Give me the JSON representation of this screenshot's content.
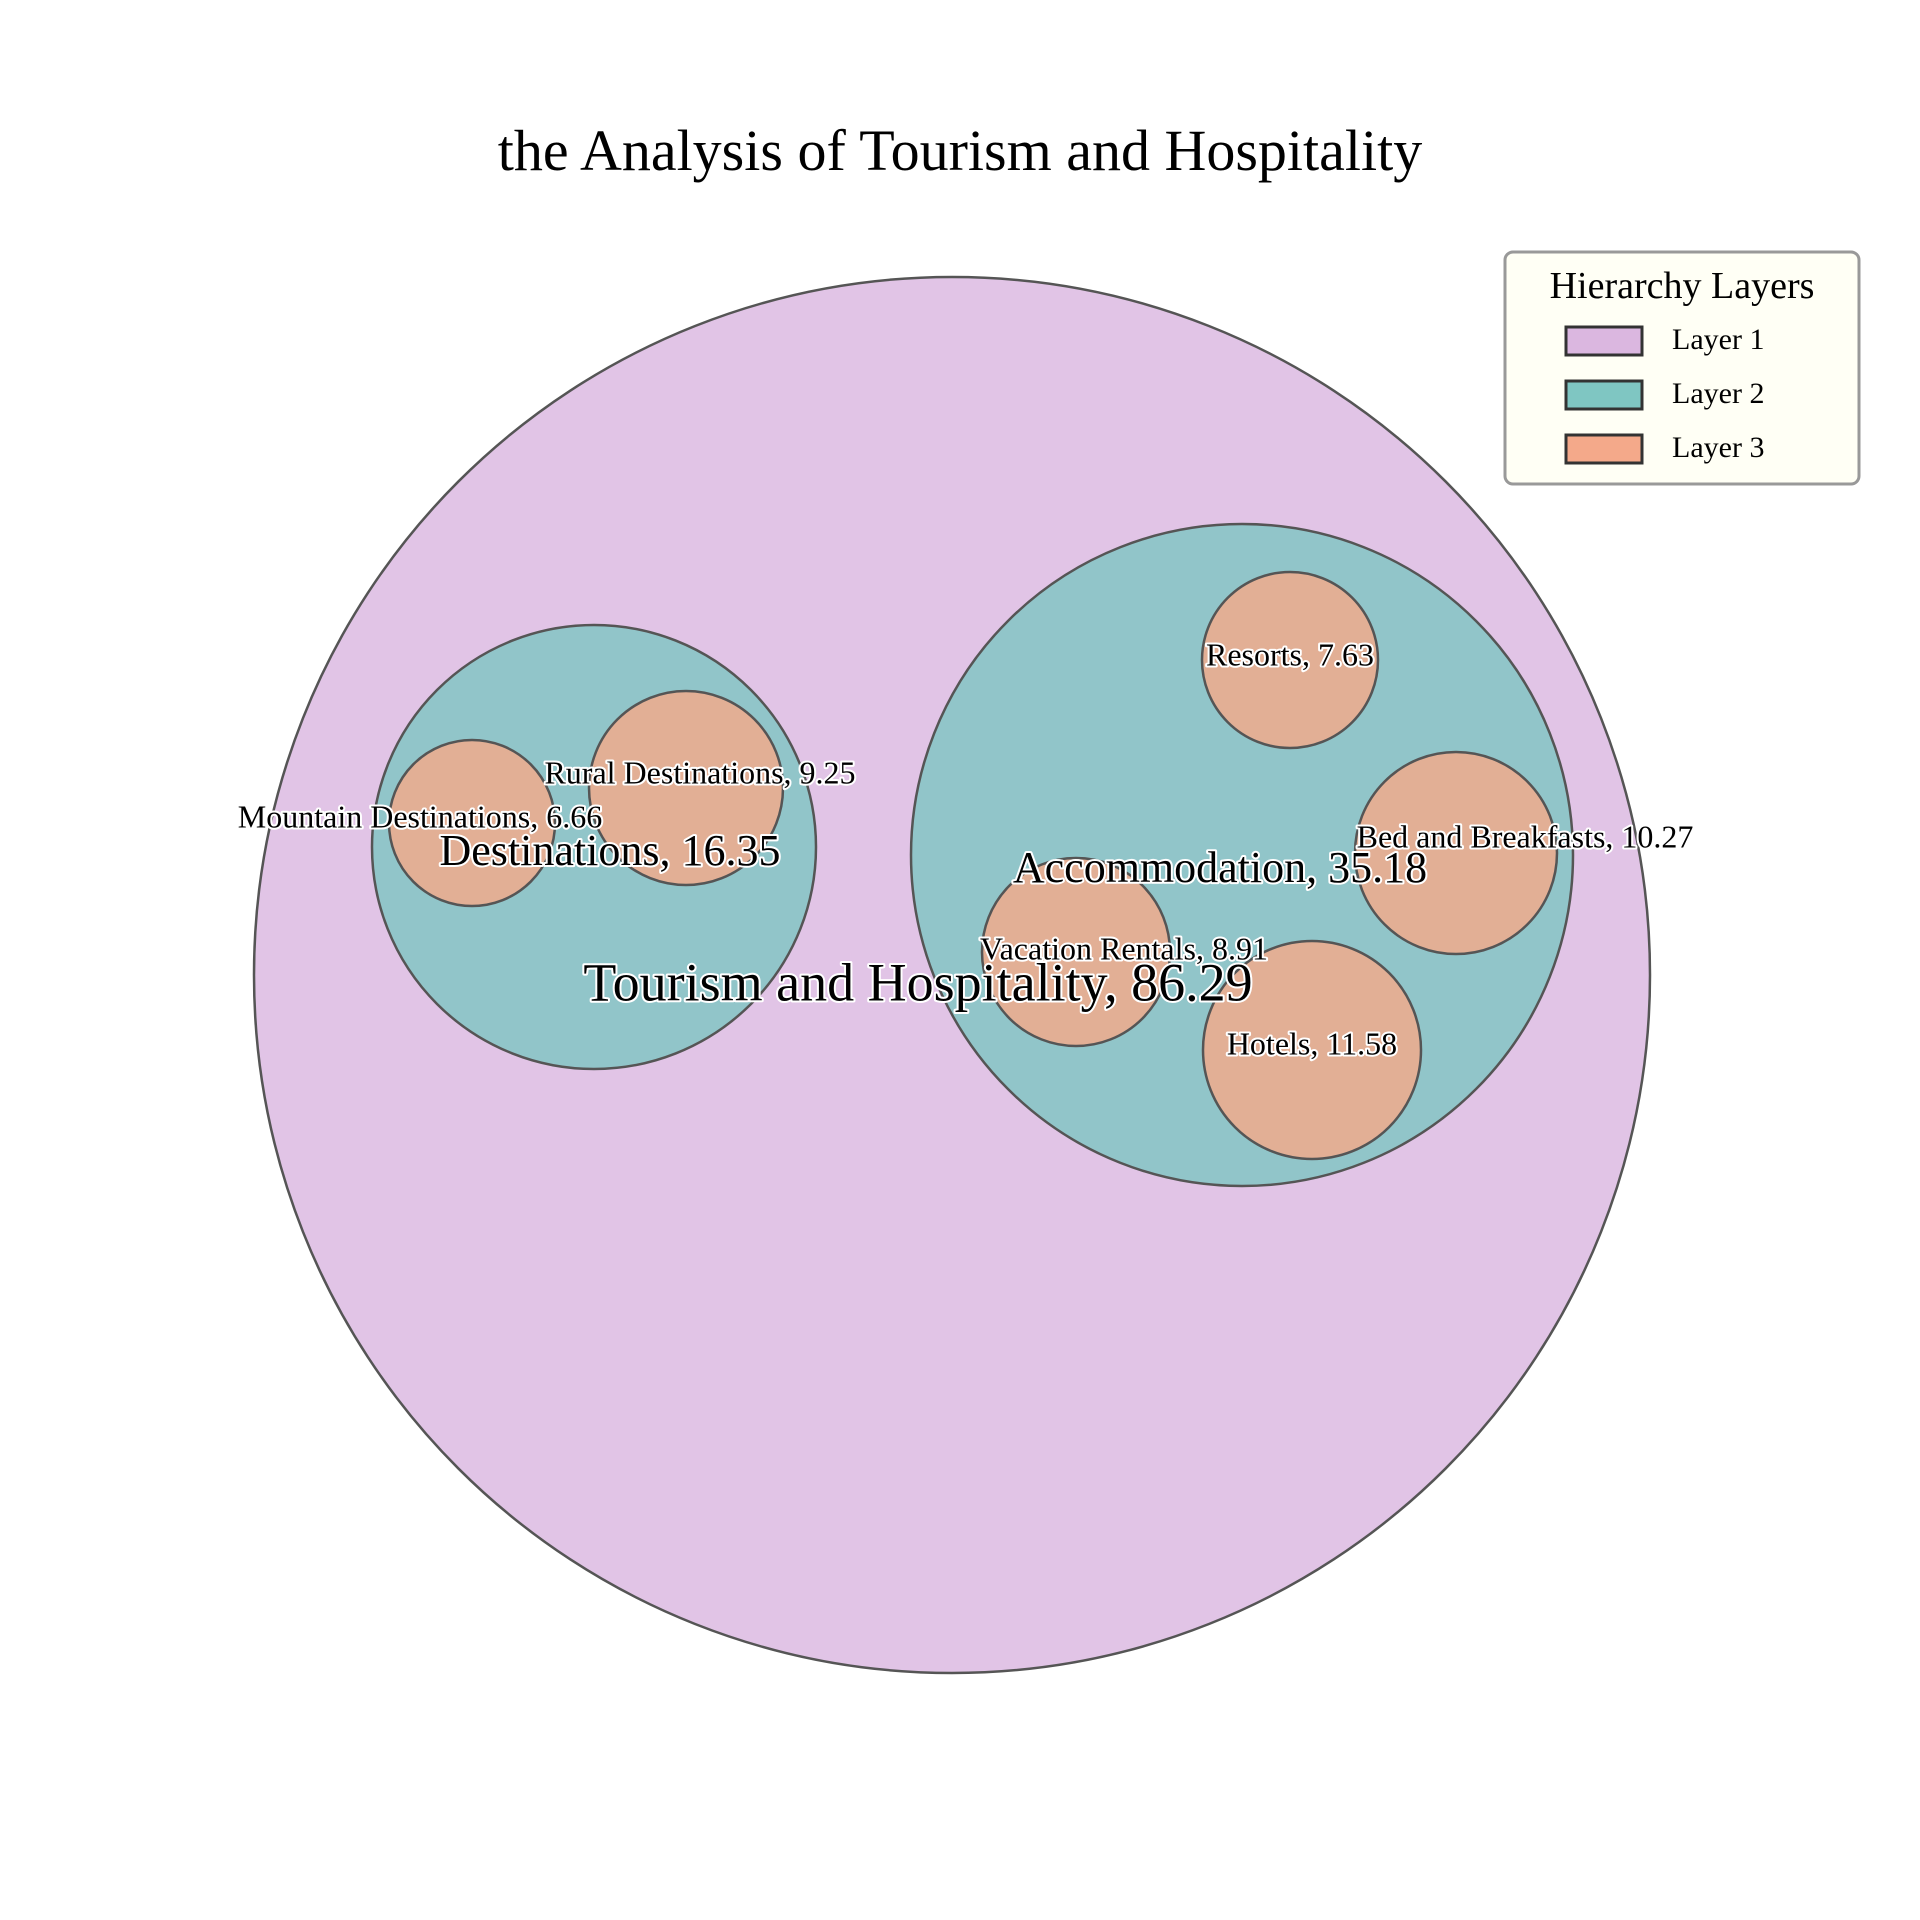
{
  "chart_data": {
    "type": "bubble",
    "title": "the Analysis of Tourism and Hospitality",
    "legend": {
      "title": "Hierarchy Layers",
      "placement": "top-right",
      "items": [
        {
          "label": "Layer 1",
          "color": "#dbb7e0"
        },
        {
          "label": "Layer 2",
          "color": "#7fc6c2"
        },
        {
          "label": "Layer 3",
          "color": "#f4a98a"
        }
      ]
    },
    "nodes": [
      {
        "id": "tourism",
        "name": "Tourism and Hospitality",
        "value": 86.29,
        "layer": 1,
        "parent": null,
        "label": "Tourism and Hospitality, 86.29"
      },
      {
        "id": "destinations",
        "name": "Destinations",
        "value": 16.35,
        "layer": 2,
        "parent": "tourism",
        "label": "Destinations, 16.35"
      },
      {
        "id": "accommodation",
        "name": "Accommodation",
        "value": 35.18,
        "layer": 2,
        "parent": "tourism",
        "label": "Accommodation, 35.18"
      },
      {
        "id": "rural",
        "name": "Rural Destinations",
        "value": 9.25,
        "layer": 3,
        "parent": "destinations",
        "label": "Rural Destinations, 9.25"
      },
      {
        "id": "mountain",
        "name": "Mountain Destinations",
        "value": 6.66,
        "layer": 3,
        "parent": "destinations",
        "label": "Mountain Destinations, 6.66"
      },
      {
        "id": "resorts",
        "name": "Resorts",
        "value": 7.63,
        "layer": 3,
        "parent": "accommodation",
        "label": "Resorts, 7.63"
      },
      {
        "id": "bnb",
        "name": "Bed and Breakfasts",
        "value": 10.27,
        "layer": 3,
        "parent": "accommodation",
        "label": "Bed and Breakfasts, 10.27"
      },
      {
        "id": "vacation",
        "name": "Vacation Rentals",
        "value": 8.91,
        "layer": 3,
        "parent": "accommodation",
        "label": "Vacation Rentals, 8.91"
      },
      {
        "id": "hotels",
        "name": "Hotels",
        "value": 11.58,
        "layer": 3,
        "parent": "accommodation",
        "label": "Hotels, 11.58"
      }
    ]
  }
}
